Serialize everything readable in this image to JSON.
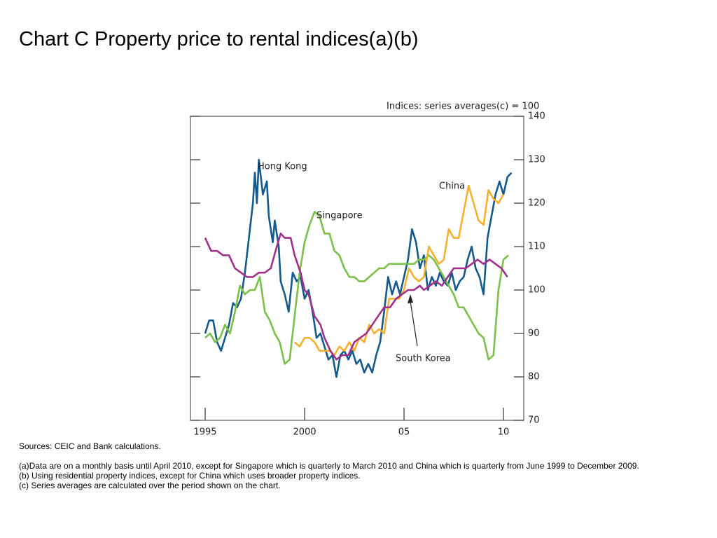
{
  "title": "Chart C  Property price to rental indices(a)(b)",
  "chart_data": {
    "type": "line",
    "y_label": "Indices:  series averages(c) = 100",
    "xlim": [
      1994.26,
      2011.02
    ],
    "xticks": [
      1995,
      2000,
      {
        "value": 2005,
        "label": "05"
      },
      {
        "value": 2010,
        "label": "10"
      }
    ],
    "ylim": [
      70,
      140
    ],
    "yticks": [
      70,
      80,
      90,
      100,
      110,
      120,
      130,
      140
    ],
    "series": [
      {
        "name": "Hong Kong",
        "color": "#145a8c",
        "x": [
          1995,
          1995.2,
          1995.4,
          1995.6,
          1995.8,
          1996,
          1996.2,
          1996.4,
          1996.6,
          1996.8,
          1997,
          1997.2,
          1997.4,
          1997.5,
          1997.6,
          1997.7,
          1997.9,
          1998.1,
          1998.2,
          1998.4,
          1998.5,
          1998.7,
          1998.8,
          1999,
          1999.2,
          1999.4,
          1999.6,
          1999.8,
          2000,
          2000.2,
          2000.4,
          2000.6,
          2000.8,
          2001,
          2001.2,
          2001.4,
          2001.6,
          2001.8,
          2002,
          2002.2,
          2002.4,
          2002.6,
          2002.8,
          2003,
          2003.2,
          2003.4,
          2003.6,
          2003.8,
          2004,
          2004.2,
          2004.4,
          2004.6,
          2004.8,
          2005,
          2005.2,
          2005.4,
          2005.6,
          2005.8,
          2006,
          2006.2,
          2006.4,
          2006.6,
          2006.8,
          2007,
          2007.2,
          2007.4,
          2007.6,
          2007.8,
          2008,
          2008.2,
          2008.4,
          2008.6,
          2008.8,
          2009,
          2009.2,
          2009.4,
          2009.6,
          2009.8,
          2010,
          2010.2,
          2010.4
        ],
        "values": [
          90,
          93,
          93,
          88,
          86,
          89,
          92,
          97,
          96,
          98,
          104,
          112,
          120,
          127,
          120,
          130,
          122,
          125,
          117,
          111,
          116,
          110,
          102,
          99,
          95,
          104,
          102,
          103,
          98,
          100,
          95,
          89,
          90,
          87,
          84,
          85,
          80,
          85,
          86,
          84,
          86,
          83,
          84,
          81,
          83,
          81,
          85,
          88,
          95,
          103,
          99,
          102,
          99,
          103,
          107,
          114,
          111,
          105,
          108,
          100,
          103,
          101,
          104,
          102,
          101,
          104,
          100,
          102,
          103,
          107,
          110,
          105,
          103,
          99,
          112,
          117,
          122,
          125,
          122,
          126,
          127
        ]
      },
      {
        "name": "Singapore",
        "color": "#7cbf4a",
        "x": [
          1995,
          1995.25,
          1995.5,
          1995.75,
          1996,
          1996.25,
          1996.5,
          1996.75,
          1997,
          1997.25,
          1997.5,
          1997.75,
          1998,
          1998.25,
          1998.5,
          1998.75,
          1999,
          1999.25,
          1999.5,
          1999.75,
          2000,
          2000.25,
          2000.5,
          2000.75,
          2001,
          2001.25,
          2001.5,
          2001.75,
          2002,
          2002.25,
          2002.5,
          2002.75,
          2003,
          2003.25,
          2003.5,
          2003.75,
          2004,
          2004.25,
          2004.5,
          2004.75,
          2005,
          2005.25,
          2005.5,
          2005.75,
          2006,
          2006.25,
          2006.5,
          2006.75,
          2007,
          2007.25,
          2007.5,
          2007.75,
          2008,
          2008.25,
          2008.5,
          2008.75,
          2009,
          2009.25,
          2009.5,
          2009.75,
          2010,
          2010.25
        ],
        "values": [
          89,
          90,
          88,
          89,
          92,
          90,
          95,
          101,
          99,
          100,
          100,
          103,
          95,
          93,
          90,
          88,
          83,
          84,
          94,
          104,
          111,
          115,
          118,
          117,
          113,
          113,
          109,
          108,
          105,
          103,
          103,
          102,
          102,
          103,
          104,
          105,
          105,
          106,
          106,
          106,
          106,
          106,
          106,
          107,
          107,
          108,
          107,
          105,
          103,
          101,
          99,
          96,
          96,
          94,
          92,
          90,
          89,
          84,
          85,
          100,
          107,
          108
        ]
      },
      {
        "name": "China",
        "color": "#f5b02e",
        "x": [
          1999.5,
          1999.75,
          2000,
          2000.25,
          2000.5,
          2000.75,
          2001,
          2001.25,
          2001.5,
          2001.75,
          2002,
          2002.25,
          2002.5,
          2002.75,
          2003,
          2003.25,
          2003.5,
          2003.75,
          2004,
          2004.25,
          2004.5,
          2004.75,
          2005,
          2005.25,
          2005.5,
          2005.75,
          2006,
          2006.25,
          2006.5,
          2006.75,
          2007,
          2007.25,
          2007.5,
          2007.75,
          2008,
          2008.25,
          2008.5,
          2008.75,
          2009,
          2009.25,
          2009.5,
          2009.75,
          2010
        ],
        "values": [
          88,
          87,
          89,
          89,
          88,
          86,
          86,
          86,
          85,
          87,
          86,
          88,
          86,
          89,
          88,
          92,
          90,
          91,
          90,
          98,
          98,
          98,
          100,
          105,
          103,
          102,
          103,
          110,
          108,
          106,
          107,
          114,
          112,
          112,
          118,
          124,
          120,
          116,
          115,
          123,
          121,
          120,
          122
        ]
      },
      {
        "name": "South Korea",
        "color": "#a0308a",
        "x": [
          1995,
          1995.3,
          1995.6,
          1995.9,
          1996.2,
          1996.5,
          1996.8,
          1997.1,
          1997.4,
          1997.7,
          1998,
          1998.3,
          1998.6,
          1998.8,
          1999,
          1999.3,
          1999.5,
          1999.8,
          2000,
          2000.2,
          2000.5,
          2000.8,
          2001,
          2001.3,
          2001.6,
          2001.9,
          2002.2,
          2002.5,
          2002.8,
          2003.1,
          2003.4,
          2003.7,
          2004,
          2004.3,
          2004.6,
          2004.9,
          2005.2,
          2005.5,
          2005.8,
          2006,
          2006.3,
          2006.6,
          2006.9,
          2007.2,
          2007.5,
          2007.8,
          2008.1,
          2008.4,
          2008.7,
          2009,
          2009.3,
          2009.6,
          2009.9,
          2010.2
        ],
        "values": [
          112,
          109,
          109,
          108,
          108,
          105,
          104,
          103,
          103,
          104,
          104,
          105,
          110,
          113,
          112,
          112,
          108,
          104,
          100,
          99,
          94,
          92,
          89,
          86,
          84,
          85,
          85,
          88,
          89,
          90,
          92,
          94,
          96,
          96,
          98,
          99,
          100,
          100,
          101,
          100,
          101,
          102,
          101,
          103,
          105,
          105,
          105,
          106,
          107,
          106,
          107,
          106,
          105,
          103
        ]
      }
    ]
  },
  "sources": "Sources:  CEIC and Bank calculations.",
  "notes": [
    "(a)Data are on a monthly basis until April 2010, except for Singapore which is quarterly to March 2010 and China which is quarterly from June 1999 to December 2009.",
    "(b)  Using residential property indices, except for China which uses broader property indices.",
    "(c)   Series averages are calculated over the period shown on the chart."
  ]
}
